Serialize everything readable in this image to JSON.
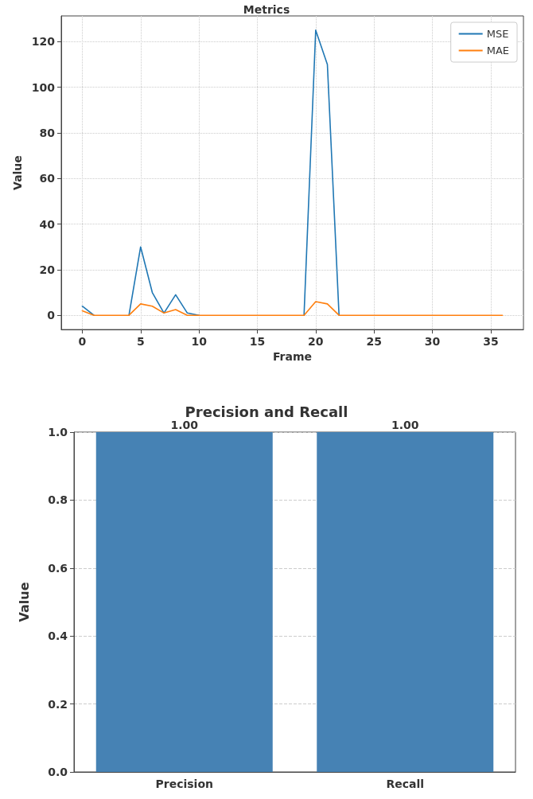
{
  "chart_data": [
    {
      "type": "line",
      "title": "Metrics",
      "xlabel": "Frame",
      "ylabel": "Value",
      "x": [
        0,
        1,
        2,
        3,
        4,
        5,
        6,
        7,
        8,
        9,
        10,
        11,
        12,
        13,
        14,
        15,
        16,
        17,
        18,
        19,
        20,
        21,
        22,
        23,
        24,
        25,
        26,
        27,
        28,
        29,
        30,
        31,
        32,
        33,
        34,
        35,
        36
      ],
      "series": [
        {
          "name": "MSE",
          "color": "#1f77b4",
          "values": [
            4,
            0,
            null,
            null,
            0,
            30,
            10,
            1,
            9,
            1,
            0,
            null,
            null,
            null,
            null,
            null,
            null,
            null,
            null,
            0,
            125,
            110,
            0,
            null,
            null,
            null,
            null,
            null,
            null,
            null,
            null,
            null,
            null,
            null,
            null,
            null,
            null
          ]
        },
        {
          "name": "MAE",
          "color": "#ff7f0e",
          "values": [
            2,
            0,
            0,
            0,
            0,
            5,
            4,
            1,
            2.5,
            0,
            0,
            0,
            0,
            0,
            0,
            0,
            0,
            0,
            0,
            0,
            6,
            5,
            0,
            0,
            0,
            0,
            0,
            0,
            0,
            0,
            0,
            0,
            0,
            0,
            0,
            0,
            0
          ]
        }
      ],
      "xlim": [
        -1.8,
        37.8
      ],
      "xticks": [
        0,
        5,
        10,
        15,
        20,
        25,
        30,
        35
      ],
      "ylim": [
        -6.25,
        131.25
      ],
      "yticks": [
        0,
        20,
        40,
        60,
        80,
        100,
        120
      ],
      "grid": true,
      "legend": "top right",
      "marker": "none",
      "line_style": "solid"
    },
    {
      "type": "bar",
      "title": "Precision and Recall",
      "ylabel": "Value",
      "categories": [
        "Precision",
        "Recall"
      ],
      "values": [
        1,
        1
      ],
      "color": "#4682b4",
      "value_labels": [
        "1.00",
        "1.00"
      ],
      "ylim": [
        0,
        1
      ],
      "yticks": [
        {
          "value": 0,
          "label": "0.0"
        },
        0.2,
        0.4,
        0.6,
        0.8,
        {
          "value": 1,
          "label": "1.0"
        }
      ],
      "grid": "y"
    }
  ]
}
